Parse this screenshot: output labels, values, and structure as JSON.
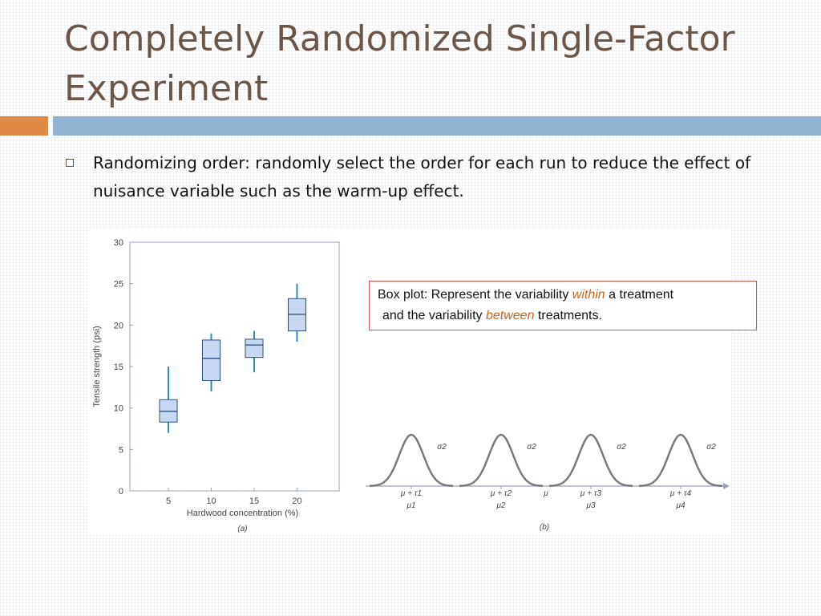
{
  "slide": {
    "title": "Completely Randomized Single-Factor Experiment",
    "bullet": "Randomizing order: randomly select the order for each run to reduce the effect of nuisance variable such as the warm-up effect."
  },
  "callout": {
    "line1_pre": "Box plot: Represent the variability ",
    "line1_em": "within",
    "line1_post": " a treatment",
    "line2_pre": "and the variability ",
    "line2_em": "between",
    "line2_post": " treatments."
  },
  "chart_data": [
    {
      "type": "box",
      "caption": "(a)",
      "xlabel": "Hardwood concentration (%)",
      "ylabel": "Tensile strength (psi)",
      "ylim": [
        0,
        30
      ],
      "yticks": [
        "0",
        "5",
        "10",
        "15",
        "20",
        "25",
        "30"
      ],
      "categories": [
        "5",
        "10",
        "15",
        "20"
      ],
      "boxes": [
        {
          "label": "5",
          "min": 7,
          "q1": 8.3,
          "median": 9.6,
          "q3": 11,
          "max": 15
        },
        {
          "label": "10",
          "min": 12,
          "q1": 13.3,
          "median": 16,
          "q3": 18.2,
          "max": 19
        },
        {
          "label": "15",
          "min": 14.3,
          "q1": 16.1,
          "median": 17.6,
          "q3": 18.3,
          "max": 19.3
        },
        {
          "label": "20",
          "min": 18,
          "q1": 19.3,
          "median": 21.3,
          "q3": 23.2,
          "max": 25
        }
      ],
      "grid": false,
      "colors": {
        "box_fill": "#c8d8f2",
        "box_edge": "#2f4f7a",
        "whisker": "#2a8cc4",
        "axis": "#9aa5b4"
      }
    },
    {
      "type": "line",
      "caption": "(b)",
      "description_axis_label": "μ",
      "curves": [
        {
          "sigma_label": "σ2",
          "mean_label": "μ + τ1",
          "mu_label": "μ1"
        },
        {
          "sigma_label": "σ2",
          "mean_label": "μ + τ2",
          "mu_label": "μ2"
        },
        {
          "sigma_label": "σ2",
          "mean_label": "μ + τ3",
          "mu_label": "μ3"
        },
        {
          "sigma_label": "σ2",
          "mean_label": "μ + τ4",
          "mu_label": "μ4"
        }
      ],
      "colors": {
        "curve": "#7a7a7a",
        "axis": "#9aa5b4"
      }
    }
  ]
}
